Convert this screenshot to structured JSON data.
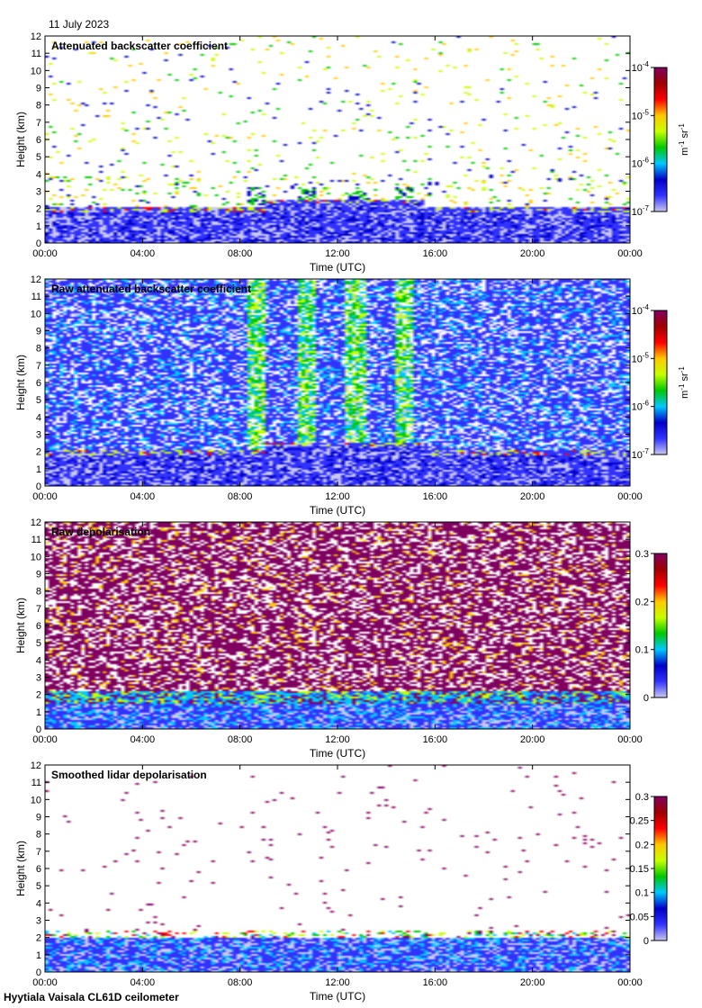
{
  "date_label": "11 July 2023",
  "footer_label": "Hyytiala Vaisala CL61D ceilometer",
  "chart_data": [
    {
      "type": "heatmap",
      "title": "Attenuated backscatter coefficient",
      "xlabel": "Time (UTC)",
      "ylabel": "Height (km)",
      "x_ticks": [
        "00:00",
        "04:00",
        "08:00",
        "12:00",
        "16:00",
        "20:00",
        "00:00"
      ],
      "y_ticks": [
        "0",
        "1",
        "2",
        "3",
        "4",
        "5",
        "6",
        "7",
        "8",
        "9",
        "10",
        "11",
        "12"
      ],
      "ylim": [
        0,
        12
      ],
      "colorbar": {
        "scale": "log",
        "range": [
          1e-07,
          0.0001
        ],
        "ticks": [
          {
            "base": "10",
            "exp": "-4"
          },
          {
            "base": "10",
            "exp": "-5"
          },
          {
            "base": "10",
            "exp": "-6"
          },
          {
            "base": "10",
            "exp": "-7"
          }
        ],
        "unit": "m^-1 sr^-1"
      },
      "colormap": [
        "#ffffff",
        "#c8c8f0",
        "#3232ff",
        "#0000c8",
        "#00c8ff",
        "#00c800",
        "#c8ff00",
        "#ffc800",
        "#ff0000",
        "#a00000",
        "#800060"
      ],
      "pattern": "clean"
    },
    {
      "type": "heatmap",
      "title": "Raw attenuated backscatter coefficient",
      "xlabel": "Time (UTC)",
      "ylabel": "Height (km)",
      "x_ticks": [
        "00:00",
        "04:00",
        "08:00",
        "12:00",
        "16:00",
        "20:00",
        "00:00"
      ],
      "y_ticks": [
        "0",
        "1",
        "2",
        "3",
        "4",
        "5",
        "6",
        "7",
        "8",
        "9",
        "10",
        "11",
        "12"
      ],
      "ylim": [
        0,
        12
      ],
      "colorbar": {
        "scale": "log",
        "range": [
          1e-07,
          0.0001
        ],
        "ticks": [
          {
            "base": "10",
            "exp": "-4"
          },
          {
            "base": "10",
            "exp": "-5"
          },
          {
            "base": "10",
            "exp": "-6"
          },
          {
            "base": "10",
            "exp": "-7"
          }
        ],
        "unit": "m^-1 sr^-1"
      },
      "colormap": [
        "#ffffff",
        "#c8c8f0",
        "#3232ff",
        "#0000c8",
        "#00c8ff",
        "#00c800",
        "#c8ff00",
        "#ffc800",
        "#ff0000",
        "#a00000",
        "#800060"
      ],
      "pattern": "raw"
    },
    {
      "type": "heatmap",
      "title": "Raw depolarisation",
      "xlabel": "Time (UTC)",
      "ylabel": "Height (km)",
      "x_ticks": [
        "00:00",
        "04:00",
        "08:00",
        "12:00",
        "16:00",
        "20:00",
        "00:00"
      ],
      "y_ticks": [
        "0",
        "1",
        "2",
        "3",
        "4",
        "5",
        "6",
        "7",
        "8",
        "9",
        "10",
        "11",
        "12"
      ],
      "ylim": [
        0,
        12
      ],
      "colorbar": {
        "scale": "linear",
        "range": [
          0,
          0.3
        ],
        "ticks": [
          {
            "base": "0.3"
          },
          {
            "base": "0.2"
          },
          {
            "base": "0.1"
          },
          {
            "base": "0"
          }
        ],
        "unit": ""
      },
      "colormap": [
        "#ffffff",
        "#c8c8f0",
        "#3232ff",
        "#0000c8",
        "#00c8ff",
        "#00c800",
        "#c8ff00",
        "#ffc800",
        "#ff0000",
        "#a00000",
        "#800060"
      ],
      "pattern": "rawdepol"
    },
    {
      "type": "heatmap",
      "title": "Smoothed lidar depolarisation",
      "xlabel": "Time (UTC)",
      "ylabel": "Height (km)",
      "x_ticks": [
        "00:00",
        "04:00",
        "08:00",
        "12:00",
        "16:00",
        "20:00",
        "00:00"
      ],
      "y_ticks": [
        "0",
        "1",
        "2",
        "3",
        "4",
        "5",
        "6",
        "7",
        "8",
        "9",
        "10",
        "11",
        "12"
      ],
      "ylim": [
        0,
        12
      ],
      "colorbar": {
        "scale": "linear",
        "range": [
          0,
          0.3
        ],
        "ticks": [
          {
            "base": "0.3"
          },
          {
            "base": "0.25"
          },
          {
            "base": "0.2"
          },
          {
            "base": "0.15"
          },
          {
            "base": "0.1"
          },
          {
            "base": "0.05"
          },
          {
            "base": "0"
          }
        ],
        "unit": ""
      },
      "colormap": [
        "#ffffff",
        "#c8c8f0",
        "#3232ff",
        "#0000c8",
        "#00c8ff",
        "#00c800",
        "#c8ff00",
        "#ffc800",
        "#ff0000",
        "#a00000",
        "#800060"
      ],
      "pattern": "smooth"
    }
  ]
}
